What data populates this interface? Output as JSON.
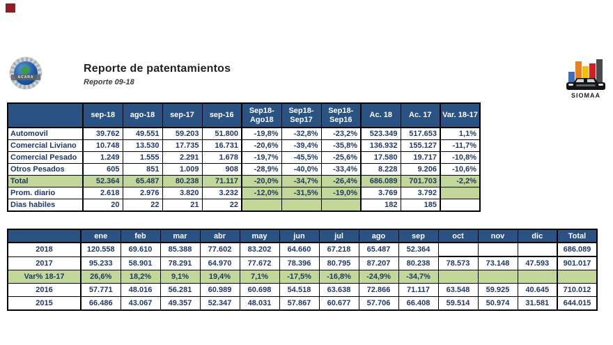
{
  "header": {
    "title": "Reporte de patentamientos",
    "subtitle": "Reporte 09-18",
    "acara_text": "ACARA",
    "siomaa_text": "SIOMAA"
  },
  "colors": {
    "header_bg": "#2a5283",
    "highlight_green": "#c4d79b",
    "text_navy": "#1f3864",
    "corner_marker": "#8c2026",
    "siomaa_bars": [
      "#3d6eb4",
      "#e8821e",
      "#f2c012",
      "#cf2027",
      "#4a4a4a"
    ]
  },
  "table1": {
    "columns": [
      "",
      "sep-18",
      "ago-18",
      "sep-17",
      "sep-16",
      "Sep18-\nAgo18",
      "Sep18-\nSep17",
      "Sep18-\nSep16",
      "Ac. 18",
      "Ac. 17",
      "Var. 18-17"
    ],
    "rows": [
      {
        "label": "Automovil",
        "variant": "plain",
        "cells": [
          "39.762",
          "49.551",
          "59.203",
          "51.800",
          "-19,8%",
          "-32,8%",
          "-23,2%",
          "523.349",
          "517.653",
          "1,1%"
        ]
      },
      {
        "label": "Comercial Liviano",
        "variant": "plain",
        "cells": [
          "10.748",
          "13.530",
          "17.735",
          "16.731",
          "-20,6%",
          "-39,4%",
          "-35,8%",
          "136.932",
          "155.127",
          "-11,7%"
        ]
      },
      {
        "label": "Comercial Pesado",
        "variant": "plain",
        "cells": [
          "1.249",
          "1.555",
          "2.291",
          "1.678",
          "-19,7%",
          "-45,5%",
          "-25,6%",
          "17.580",
          "19.717",
          "-10,8%"
        ]
      },
      {
        "label": "Otros Pesados",
        "variant": "plain",
        "cells": [
          "605",
          "851",
          "1.009",
          "908",
          "-28,9%",
          "-40,0%",
          "-33,4%",
          "8.228",
          "9.206",
          "-10,6%"
        ]
      },
      {
        "label": "Total",
        "variant": "total",
        "cells": [
          "52.364",
          "65.487",
          "80.238",
          "71.117",
          "-20,0%",
          "-34,7%",
          "-26,4%",
          "686.089",
          "701.703",
          "-2,2%"
        ]
      },
      {
        "label": "Prom. diario",
        "variant": "prom",
        "cells": [
          "2.618",
          "2.976",
          "3.820",
          "3.232",
          "-12,0%",
          "-31,5%",
          "-19,0%",
          "3.769",
          "3.792",
          ""
        ]
      },
      {
        "label": "Dias habiles",
        "variant": "dias",
        "cells": [
          "20",
          "22",
          "21",
          "22",
          "",
          "",
          "",
          "182",
          "185",
          ""
        ]
      }
    ]
  },
  "table2": {
    "columns": [
      "",
      "ene",
      "feb",
      "mar",
      "abr",
      "may",
      "jun",
      "jul",
      "ago",
      "sep",
      "oct",
      "nov",
      "dic",
      "Total"
    ],
    "rows": [
      {
        "label": "2018",
        "variant": "current",
        "cells": [
          "120.558",
          "69.610",
          "85.388",
          "77.602",
          "83.202",
          "64.660",
          "67.218",
          "65.487",
          "52.364",
          "",
          "",
          "",
          "686.089"
        ]
      },
      {
        "label": "2017",
        "variant": "plain",
        "cells": [
          "95.233",
          "58.901",
          "78.291",
          "64.970",
          "77.672",
          "78.396",
          "80.795",
          "87.207",
          "80.238",
          "78.573",
          "73.148",
          "47.593",
          "901.017"
        ]
      },
      {
        "label": "Var% 18-17",
        "variant": "var",
        "cells": [
          "26,6%",
          "18,2%",
          "9,1%",
          "19,4%",
          "7,1%",
          "-17,5%",
          "-16,8%",
          "-24,9%",
          "-34,7%",
          "",
          "",
          "",
          ""
        ]
      },
      {
        "label": "2016",
        "variant": "plain",
        "cells": [
          "57.771",
          "48.016",
          "56.281",
          "60.989",
          "60.698",
          "54.518",
          "63.638",
          "72.866",
          "71.117",
          "63.548",
          "59.925",
          "40.645",
          "710.012"
        ]
      },
      {
        "label": "2015",
        "variant": "plain",
        "cells": [
          "66.486",
          "43.067",
          "49.357",
          "52.347",
          "48.031",
          "57.867",
          "60.677",
          "57.706",
          "66.408",
          "59.514",
          "50.974",
          "31.581",
          "644.015"
        ]
      }
    ]
  }
}
